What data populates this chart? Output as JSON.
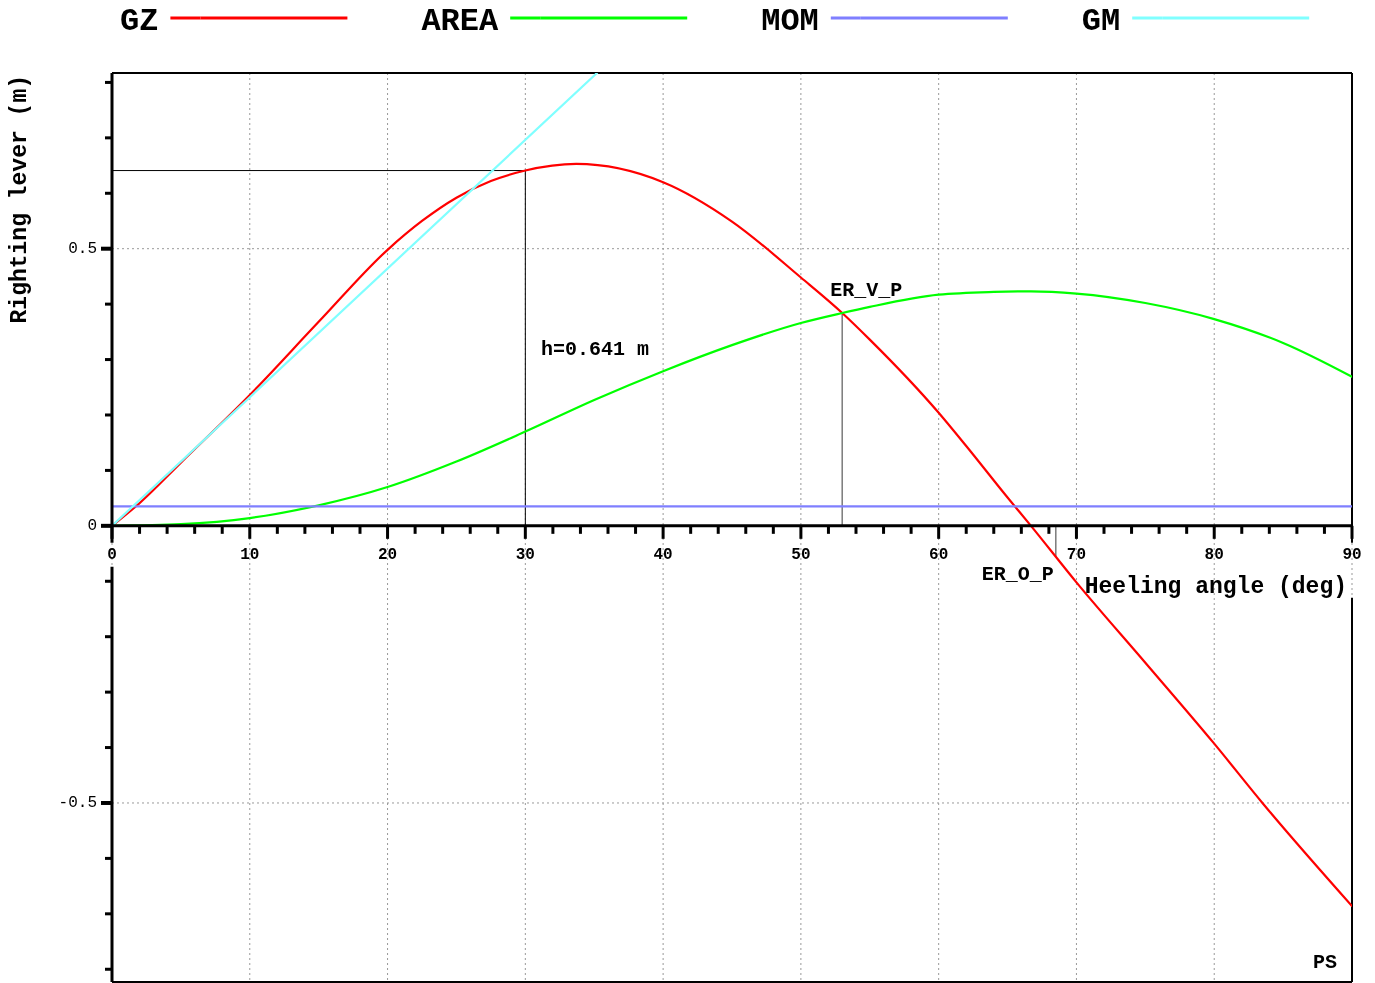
{
  "chart_data": {
    "type": "line",
    "xlabel": "Heeling angle (deg)",
    "ylabel": "Righting lever (m)",
    "xlim": [
      0,
      90
    ],
    "xticks": [
      0,
      {
        "value": 2,
        "label": null
      },
      {
        "value": 4,
        "label": null
      },
      {
        "value": 6,
        "label": null
      },
      {
        "value": 8,
        "label": null
      },
      10,
      {
        "value": 12,
        "label": null
      },
      {
        "value": 14,
        "label": null
      },
      {
        "value": 16,
        "label": null
      },
      {
        "value": 18,
        "label": null
      },
      20,
      {
        "value": 22,
        "label": null
      },
      {
        "value": 24,
        "label": null
      },
      {
        "value": 26,
        "label": null
      },
      {
        "value": 28,
        "label": null
      },
      30,
      {
        "value": 32,
        "label": null
      },
      {
        "value": 34,
        "label": null
      },
      {
        "value": 36,
        "label": null
      },
      {
        "value": 38,
        "label": null
      },
      40,
      {
        "value": 42,
        "label": null
      },
      {
        "value": 44,
        "label": null
      },
      {
        "value": 46,
        "label": null
      },
      {
        "value": 48,
        "label": null
      },
      50,
      {
        "value": 52,
        "label": null
      },
      {
        "value": 54,
        "label": null
      },
      {
        "value": 56,
        "label": null
      },
      {
        "value": 58,
        "label": null
      },
      60,
      {
        "value": 62,
        "label": null
      },
      {
        "value": 64,
        "label": null
      },
      {
        "value": 66,
        "label": null
      },
      {
        "value": 68,
        "label": null
      },
      70,
      {
        "value": 72,
        "label": null
      },
      {
        "value": 74,
        "label": null
      },
      {
        "value": 76,
        "label": null
      },
      {
        "value": 78,
        "label": null
      },
      80,
      {
        "value": 82,
        "label": null
      },
      {
        "value": 84,
        "label": null
      },
      {
        "value": 86,
        "label": null
      },
      {
        "value": 88,
        "label": null
      },
      90
    ],
    "ylim": [
      -0.823,
      0.817
    ],
    "yticks": [
      {
        "value": -0.8,
        "label": null
      },
      {
        "value": -0.7,
        "label": null
      },
      {
        "value": -0.6,
        "label": null
      },
      -0.5,
      {
        "value": -0.4,
        "label": null
      },
      {
        "value": -0.3,
        "label": null
      },
      {
        "value": -0.2,
        "label": null
      },
      {
        "value": -0.1,
        "label": null
      },
      0,
      {
        "value": 0.1,
        "label": null
      },
      {
        "value": 0.2,
        "label": null
      },
      {
        "value": 0.3,
        "label": null
      },
      {
        "value": 0.4,
        "label": null
      },
      0.5,
      {
        "value": 0.6,
        "label": null
      },
      {
        "value": 0.7,
        "label": null
      },
      {
        "value": 0.8,
        "label": null
      }
    ],
    "grid": true,
    "legend": "top",
    "series": [
      {
        "name": "GZ",
        "color": "#ff0000",
        "x": [
          0,
          2,
          5,
          10,
          15,
          20,
          22.5,
          25,
          27.5,
          30,
          33.7,
          40,
          45,
          50,
          53,
          55,
          60,
          62,
          65,
          66.7,
          70,
          75,
          80,
          83.5,
          90
        ],
        "values": [
          0,
          0.041,
          0.114,
          0.236,
          0.368,
          0.498,
          0.55,
          0.592,
          0.622,
          0.641,
          0.653,
          0.62,
          0.549,
          0.448,
          0.384,
          0.336,
          0.204,
          0.144,
          0.051,
          0,
          -0.102,
          -0.247,
          -0.393,
          -0.5,
          -0.686
        ]
      },
      {
        "name": "AREA",
        "color": "#00ff00",
        "x": [
          0,
          5,
          10,
          15,
          20,
          25,
          30,
          35,
          40,
          45,
          50,
          53,
          55,
          60,
          64,
          66.7,
          70,
          75,
          80,
          85,
          90
        ],
        "values": [
          0,
          0.003,
          0.014,
          0.037,
          0.07,
          0.116,
          0.17,
          0.227,
          0.279,
          0.326,
          0.366,
          0.384,
          0.395,
          0.417,
          0.422,
          0.423,
          0.419,
          0.402,
          0.373,
          0.33,
          0.269
        ]
      },
      {
        "name": "MOM",
        "color": "#7f7fff",
        "x": [
          0,
          90
        ],
        "values": [
          0.035,
          0.035
        ]
      },
      {
        "name": "GM",
        "color": "#80ffff",
        "x": [
          0,
          35.2
        ],
        "values": [
          0,
          0.817
        ]
      }
    ],
    "ref_lines": [
      {
        "axis": "x",
        "value": 30,
        "color": "#000000"
      },
      {
        "axis": "y",
        "value": 0.641,
        "color": "#000000"
      },
      {
        "axis": "x",
        "value": 53,
        "label": "ER_V_P",
        "color": "#808080"
      },
      {
        "axis": "x",
        "value": 68.5,
        "label": "ER_O_P",
        "color": "#808080"
      }
    ],
    "annotations": [
      "h=0.641 m",
      "PS"
    ]
  }
}
